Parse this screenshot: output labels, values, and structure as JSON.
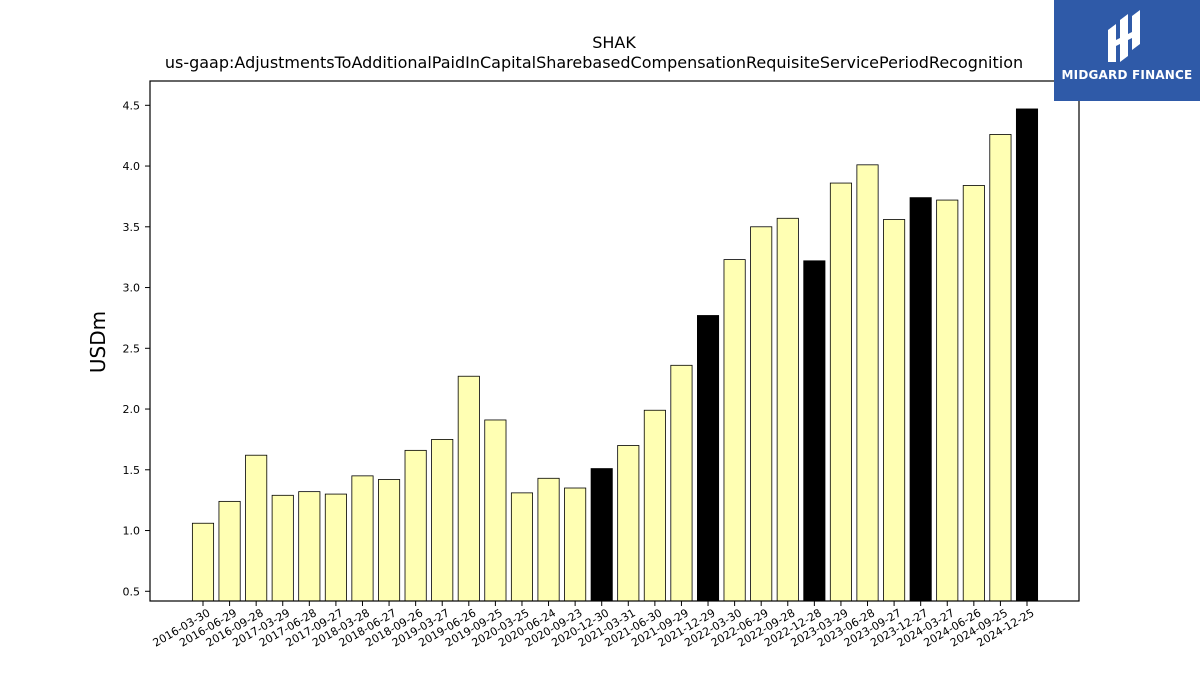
{
  "chart_data": {
    "type": "bar",
    "title": "SHAK",
    "subtitle": "us-gaap:AdjustmentsToAdditionalPaidInCapitalSharebasedCompensationRequisiteServicePeriodRecognition",
    "xlabel": "",
    "ylabel": "USDm",
    "ylim": [
      0.42,
      4.7
    ],
    "yticks": [
      "0.5",
      "1.0",
      "1.5",
      "2.0",
      "2.5",
      "3.0",
      "3.5",
      "4.0",
      "4.5"
    ],
    "grid": false,
    "categories": [
      "2016-03-30",
      "2016-06-29",
      "2016-09-28",
      "2017-03-29",
      "2017-06-28",
      "2017-09-27",
      "2018-03-28",
      "2018-06-27",
      "2018-09-26",
      "2019-03-27",
      "2019-06-26",
      "2019-09-25",
      "2020-03-25",
      "2020-06-24",
      "2020-09-23",
      "2020-12-30",
      "2021-03-31",
      "2021-06-30",
      "2021-09-29",
      "2021-12-29",
      "2022-03-30",
      "2022-06-29",
      "2022-09-28",
      "2022-12-28",
      "2023-03-29",
      "2023-06-28",
      "2023-09-27",
      "2023-12-27",
      "2024-03-27",
      "2024-06-26",
      "2024-09-25",
      "2024-12-25"
    ],
    "values": [
      1.06,
      1.24,
      1.62,
      1.29,
      1.32,
      1.3,
      1.45,
      1.42,
      1.66,
      1.75,
      2.27,
      1.91,
      1.31,
      1.43,
      1.35,
      1.51,
      1.7,
      1.99,
      2.36,
      2.77,
      3.23,
      3.5,
      3.57,
      3.22,
      3.86,
      4.01,
      3.56,
      3.74,
      3.72,
      3.84,
      4.26,
      4.47
    ],
    "highlight": [
      false,
      false,
      false,
      false,
      false,
      false,
      false,
      false,
      false,
      false,
      false,
      false,
      false,
      false,
      false,
      true,
      false,
      false,
      false,
      true,
      false,
      false,
      false,
      true,
      false,
      false,
      false,
      true,
      false,
      false,
      false,
      true
    ],
    "colors": {
      "bar": "#ffffb3",
      "highlight": "#000000",
      "edge": "#000000"
    }
  },
  "logo": {
    "text": "MIDGARD FINANCE",
    "background": "#2f5aa8"
  }
}
